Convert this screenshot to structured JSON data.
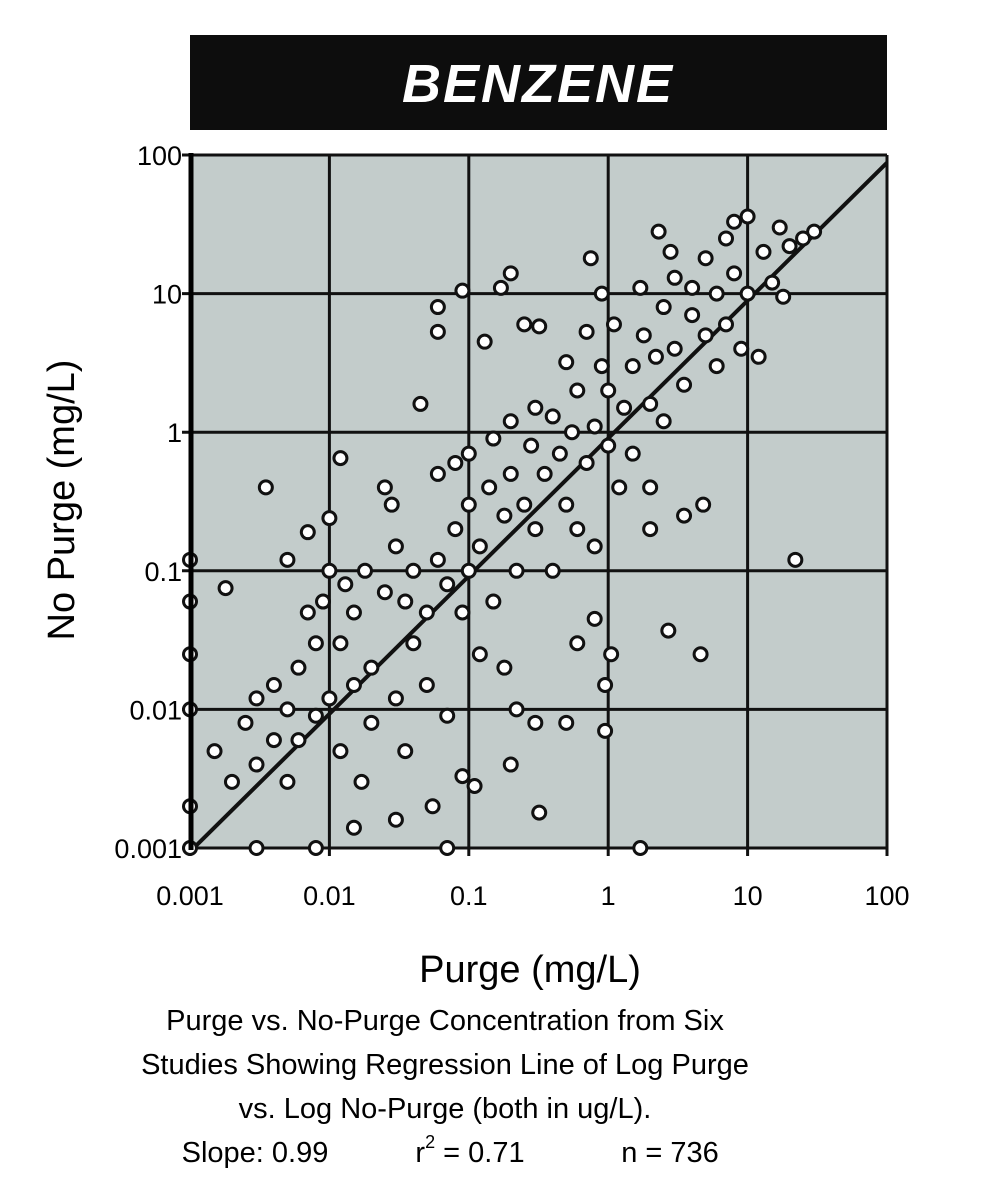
{
  "chart_data": {
    "type": "scatter",
    "title": "BENZENE",
    "xlabel": "Purge (mg/L)",
    "ylabel": "No Purge (mg/L)",
    "x_scale": "log",
    "y_scale": "log",
    "xlim": [
      0.001,
      100
    ],
    "ylim": [
      0.001,
      100
    ],
    "x_ticks": [
      "0.001",
      "0.01",
      "0.1",
      "1",
      "10",
      "100"
    ],
    "y_ticks": [
      "0.001",
      "0.01",
      "0.1",
      "1",
      "10",
      "100"
    ],
    "grid": true,
    "colors": {
      "plot_bg": "#c3cccb",
      "title_bg": "#0d0d0d",
      "title_text": "#ffffff",
      "marker_fill": "#ffffff",
      "marker_edge": "#111111"
    },
    "regression_line": [
      [
        0.001,
        0.00094
      ],
      [
        100,
        88
      ]
    ],
    "points": [
      [
        0.0035,
        0.4
      ],
      [
        0.012,
        0.65
      ],
      [
        0.045,
        1.6
      ],
      [
        0.06,
        8
      ],
      [
        0.06,
        5.3
      ],
      [
        0.09,
        10.5
      ],
      [
        0.17,
        11
      ],
      [
        0.2,
        14
      ],
      [
        0.13,
        4.5
      ],
      [
        0.25,
        6
      ],
      [
        0.32,
        5.8
      ],
      [
        2.3,
        28
      ],
      [
        2.8,
        20
      ],
      [
        0.75,
        18
      ],
      [
        22,
        0.12
      ],
      [
        2.7,
        0.037
      ],
      [
        4.6,
        0.025
      ],
      [
        1.7,
        0.001
      ],
      [
        0.32,
        0.0018
      ],
      [
        0.07,
        0.001
      ],
      [
        0.001,
        0.12
      ],
      [
        0.001,
        0.06
      ],
      [
        0.001,
        0.025
      ],
      [
        0.001,
        0.01
      ],
      [
        0.001,
        0.002
      ],
      [
        0.001,
        0.001
      ],
      [
        0.003,
        0.001
      ],
      [
        0.008,
        0.001
      ],
      [
        0.0018,
        0.075
      ],
      [
        0.95,
        0.007
      ],
      [
        0.6,
        0.03
      ],
      [
        0.5,
        0.008
      ],
      [
        0.3,
        0.008
      ],
      [
        0.95,
        0.015
      ],
      [
        1.05,
        0.025
      ],
      [
        0.8,
        0.045
      ],
      [
        0.055,
        0.002
      ],
      [
        0.03,
        0.0016
      ],
      [
        0.015,
        0.0014
      ],
      [
        0.09,
        0.0033
      ],
      [
        0.11,
        0.0028
      ],
      [
        0.2,
        0.004
      ],
      [
        0.22,
        0.01
      ],
      [
        0.18,
        0.02
      ],
      [
        3.5,
        0.25
      ],
      [
        4.8,
        0.3
      ],
      [
        2,
        0.4
      ],
      [
        0.0015,
        0.005
      ],
      [
        0.002,
        0.003
      ],
      [
        0.0025,
        0.008
      ],
      [
        0.003,
        0.004
      ],
      [
        0.003,
        0.012
      ],
      [
        0.004,
        0.006
      ],
      [
        0.004,
        0.015
      ],
      [
        0.005,
        0.003
      ],
      [
        0.005,
        0.01
      ],
      [
        0.005,
        0.12
      ],
      [
        0.006,
        0.02
      ],
      [
        0.006,
        0.006
      ],
      [
        0.007,
        0.19
      ],
      [
        0.007,
        0.05
      ],
      [
        0.008,
        0.009
      ],
      [
        0.008,
        0.03
      ],
      [
        0.009,
        0.06
      ],
      [
        0.01,
        0.012
      ],
      [
        0.01,
        0.24
      ],
      [
        0.01,
        0.1
      ],
      [
        0.012,
        0.005
      ],
      [
        0.012,
        0.03
      ],
      [
        0.013,
        0.08
      ],
      [
        0.015,
        0.015
      ],
      [
        0.015,
        0.05
      ],
      [
        0.017,
        0.003
      ],
      [
        0.018,
        0.1
      ],
      [
        0.02,
        0.02
      ],
      [
        0.02,
        0.008
      ],
      [
        0.025,
        0.07
      ],
      [
        0.025,
        0.4
      ],
      [
        0.028,
        0.3
      ],
      [
        0.03,
        0.012
      ],
      [
        0.03,
        0.15
      ],
      [
        0.035,
        0.005
      ],
      [
        0.035,
        0.06
      ],
      [
        0.04,
        0.03
      ],
      [
        0.04,
        0.1
      ],
      [
        0.05,
        0.05
      ],
      [
        0.05,
        0.015
      ],
      [
        0.06,
        0.5
      ],
      [
        0.06,
        0.12
      ],
      [
        0.07,
        0.08
      ],
      [
        0.07,
        0.009
      ],
      [
        0.08,
        0.6
      ],
      [
        0.08,
        0.2
      ],
      [
        0.09,
        0.05
      ],
      [
        0.1,
        0.7
      ],
      [
        0.1,
        0.1
      ],
      [
        0.1,
        0.3
      ],
      [
        0.12,
        0.025
      ],
      [
        0.12,
        0.15
      ],
      [
        0.14,
        0.4
      ],
      [
        0.15,
        0.06
      ],
      [
        0.15,
        0.9
      ],
      [
        0.18,
        0.25
      ],
      [
        0.2,
        1.2
      ],
      [
        0.2,
        0.5
      ],
      [
        0.22,
        0.1
      ],
      [
        0.25,
        0.3
      ],
      [
        0.28,
        0.8
      ],
      [
        0.3,
        0.2
      ],
      [
        0.3,
        1.5
      ],
      [
        0.35,
        0.5
      ],
      [
        0.4,
        0.1
      ],
      [
        0.4,
        1.3
      ],
      [
        0.45,
        0.7
      ],
      [
        0.5,
        3.2
      ],
      [
        0.5,
        0.3
      ],
      [
        0.55,
        1
      ],
      [
        0.6,
        0.2
      ],
      [
        0.6,
        2
      ],
      [
        0.7,
        5.3
      ],
      [
        0.7,
        0.6
      ],
      [
        0.8,
        1.1
      ],
      [
        0.8,
        0.15
      ],
      [
        0.9,
        10
      ],
      [
        0.9,
        3
      ],
      [
        1,
        0.8
      ],
      [
        1,
        2
      ],
      [
        1.1,
        6
      ],
      [
        1.2,
        0.4
      ],
      [
        1.3,
        1.5
      ],
      [
        1.5,
        3
      ],
      [
        1.5,
        0.7
      ],
      [
        1.7,
        11
      ],
      [
        1.8,
        5
      ],
      [
        2,
        1.6
      ],
      [
        2,
        0.2
      ],
      [
        2.2,
        3.5
      ],
      [
        2.5,
        8
      ],
      [
        2.5,
        1.2
      ],
      [
        3,
        4
      ],
      [
        3,
        13
      ],
      [
        3.5,
        2.2
      ],
      [
        4,
        7
      ],
      [
        4,
        11
      ],
      [
        5,
        5
      ],
      [
        5,
        18
      ],
      [
        6,
        3
      ],
      [
        6,
        10
      ],
      [
        7,
        25
      ],
      [
        7,
        6
      ],
      [
        8,
        33
      ],
      [
        8,
        14
      ],
      [
        9,
        4
      ],
      [
        10,
        36
      ],
      [
        10,
        10
      ],
      [
        12,
        3.5
      ],
      [
        13,
        20
      ],
      [
        15,
        12
      ],
      [
        17,
        30
      ],
      [
        18,
        9.5
      ],
      [
        20,
        22
      ],
      [
        25,
        25
      ],
      [
        30,
        28
      ]
    ]
  },
  "caption": {
    "line1": "Purge vs. No-Purge Concentration from Six",
    "line2": "Studies Showing Regression Line of  Log  Purge",
    "line3": "vs. Log  No-Purge (both in ug/L).",
    "slope": "Slope:  0.99",
    "r_label": "r",
    "r_sup": "2",
    "r_value": " = 0.71",
    "n": "n = 736"
  }
}
